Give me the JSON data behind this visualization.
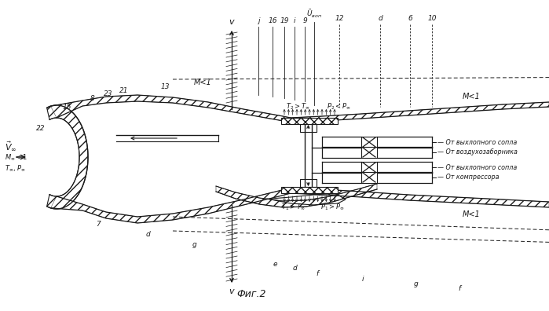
{
  "title": "Фиг.2",
  "bg_color": "#ffffff",
  "lc": "#1a1a1a",
  "pipe_labels": [
    "От выхлопного сопла",
    "От воздухозаборника",
    "От выхлопного сопла",
    "От компрессора"
  ]
}
